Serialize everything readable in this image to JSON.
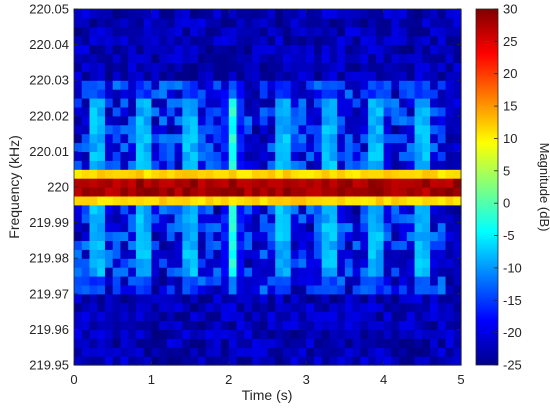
{
  "chart_data": {
    "type": "heatmap",
    "title": "",
    "xlabel": "Time (s)",
    "ylabel": "Frequency (kHz)",
    "xlim": [
      0,
      5
    ],
    "ylim": [
      219.95,
      220.05
    ],
    "x_ticks": [
      0,
      1,
      2,
      3,
      4,
      5
    ],
    "x_tick_labels": [
      "0",
      "1",
      "2",
      "3",
      "4",
      "5"
    ],
    "y_ticks": [
      219.95,
      219.96,
      219.97,
      219.98,
      219.99,
      220,
      220.01,
      220.02,
      220.03,
      220.04,
      220.05
    ],
    "y_tick_labels": [
      "219.95",
      "219.96",
      "219.97",
      "219.98",
      "219.99",
      "220",
      "220.01",
      "220.02",
      "220.03",
      "220.04",
      "220.05"
    ],
    "colorbar": {
      "label": "Magnitude (dB)",
      "range": [
        -25,
        30
      ],
      "ticks": [
        -25,
        -20,
        -15,
        -10,
        -5,
        0,
        5,
        10,
        15,
        20,
        25,
        30
      ],
      "colormap": "jet"
    },
    "carrier": {
      "frequency_khz": 220.0,
      "band_khz": [
        219.994,
        220.006
      ],
      "peak_db": 30,
      "edge_db": 10
    },
    "sidebands": {
      "upper_khz": [
        219.995,
        220.03
      ],
      "lower_khz": [
        219.97,
        219.995
      ],
      "peak_times_s": [
        0.3,
        0.9,
        1.5,
        2.05,
        2.7,
        3.3,
        3.9,
        4.5
      ],
      "peak_db": -5
    },
    "noise_floor_db": -25
  }
}
